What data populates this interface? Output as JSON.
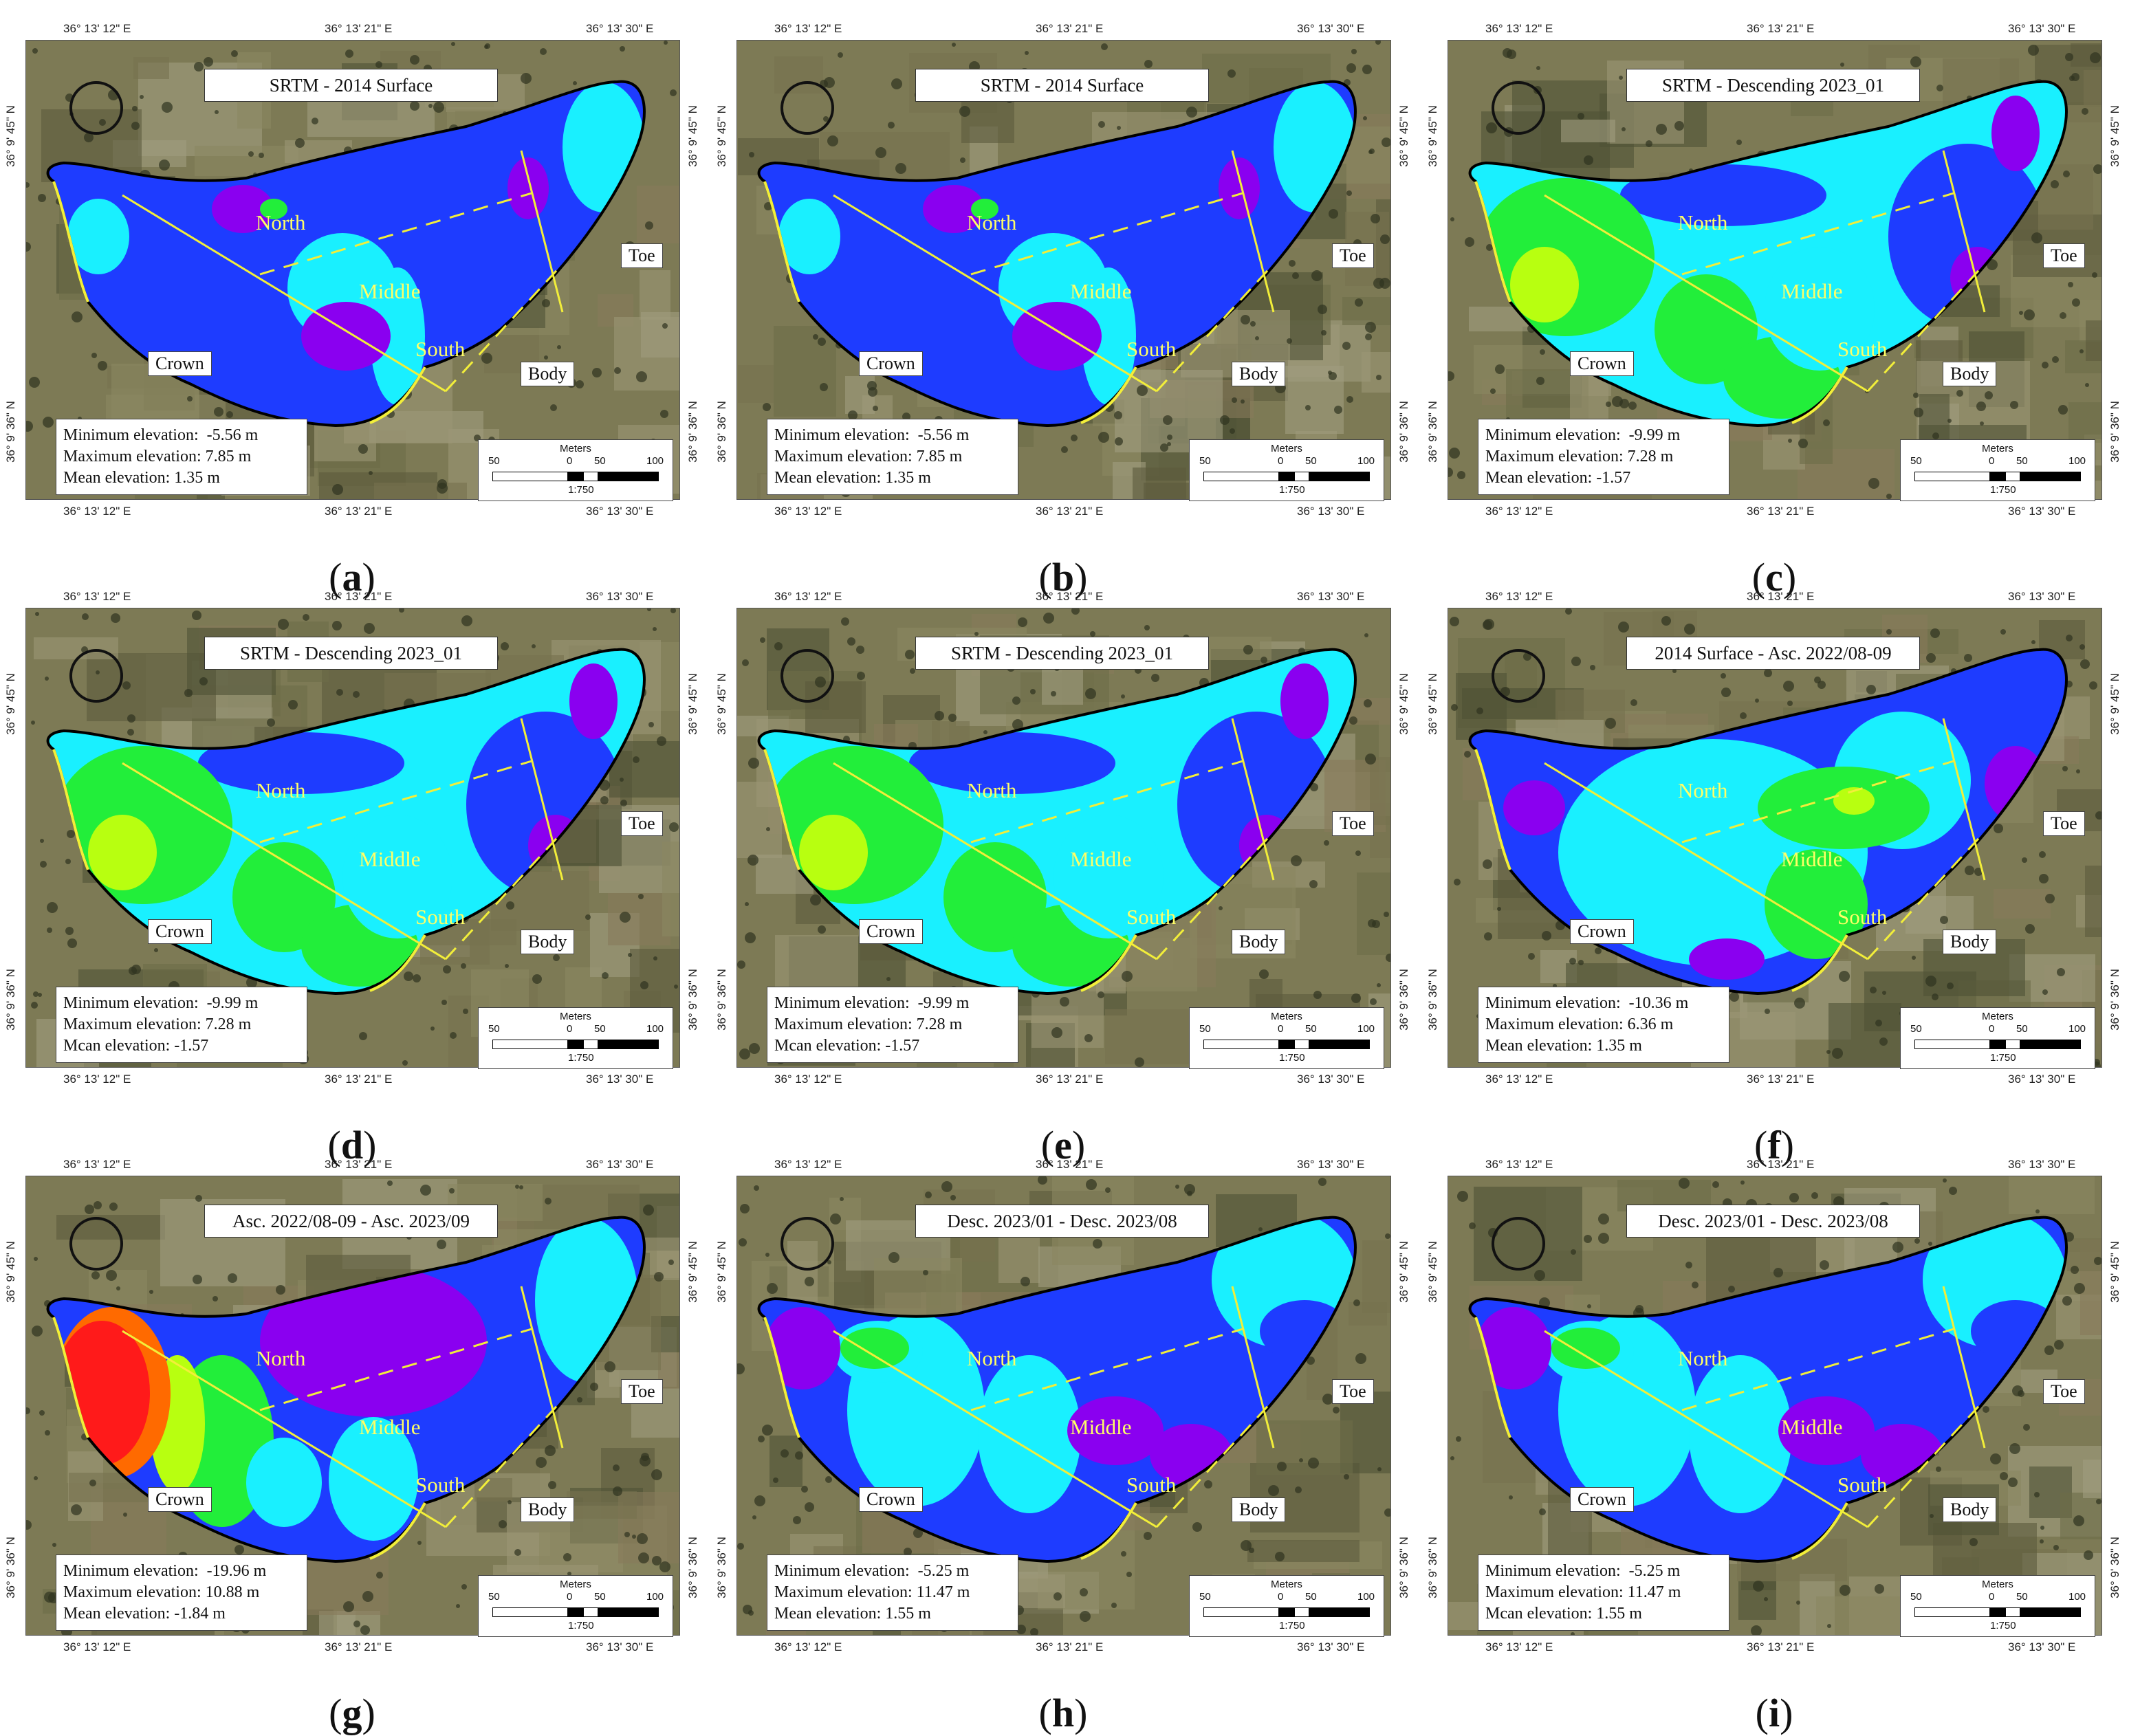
{
  "coords": {
    "top_left": "36° 13' 12\" E",
    "top_mid": "36° 13' 21\" E",
    "top_right": "36° 13' 30\" E",
    "left_upper": "36° 9' 45\" N",
    "left_lower": "36° 9' 36\" N"
  },
  "labels": {
    "toe": "Toe",
    "body": "Body",
    "crown": "Crown",
    "north": "North",
    "middle": "Middle",
    "south": "South"
  },
  "scale": {
    "meters": "Meters",
    "t50a": "50",
    "t0": "0",
    "t50b": "50",
    "t100": "100",
    "ratio": "1:750"
  },
  "stat_labels": {
    "min": "Minimum elevation:",
    "max": "Maximum elevation:",
    "mean": "Mean elevation:"
  },
  "colors": {
    "purple": "#8a00f0",
    "blue": "#1e3cff",
    "cyan": "#19f0ff",
    "green": "#22ee3a",
    "yellowgreen": "#b8ff10",
    "orange": "#ff6a00",
    "red": "#ff1a1a",
    "guide": "#f2ee3a"
  },
  "panels": [
    {
      "caption": "a",
      "title": "SRTM - 2014 Surface",
      "min": "-5.56 m",
      "max": "7.85 m",
      "mean": "1.35 m",
      "mean_label": "Mean elevation:",
      "scheme": "blue"
    },
    {
      "caption": "b",
      "title": "SRTM - 2014 Surface",
      "min": "-5.56 m",
      "max": "7.85 m",
      "mean": "1.35 m",
      "mean_label": "Mean elevation:",
      "scheme": "blue"
    },
    {
      "caption": "c",
      "title": "SRTM - Descending 2023_01",
      "min": "-9.99 m",
      "max": "7.28 m",
      "mean": "-1.57",
      "mean_label": "Mean elevation:",
      "scheme": "desc"
    },
    {
      "caption": "d",
      "title": "SRTM - Descending 2023_01",
      "min": "-9.99 m",
      "max": "7.28 m",
      "mean": "-1.57",
      "mean_label": "Mcan elevation:",
      "scheme": "desc"
    },
    {
      "caption": "e",
      "title": "SRTM - Descending 2023_01",
      "min": "-9.99 m",
      "max": "7.28 m",
      "mean": "-1.57",
      "mean_label": "Mcan elevation:",
      "scheme": "desc"
    },
    {
      "caption": "f",
      "title": "2014 Surface - Asc. 2022/08-09",
      "min": "-10.36 m",
      "max": "6.36 m",
      "mean": "1.35 m",
      "mean_label": "Mean elevation:",
      "scheme": "asc"
    },
    {
      "caption": "g",
      "title": "Asc. 2022/08-09 - Asc. 2023/09",
      "min": "-19.96 m",
      "max": "10.88 m",
      "mean": "-1.84 m",
      "mean_label": "Mean elevation:",
      "scheme": "diff"
    },
    {
      "caption": "h",
      "title": "Desc. 2023/01 - Desc. 2023/08",
      "min": "-5.25 m",
      "max": "11.47 m",
      "mean": "1.55 m",
      "mean_label": "Mean elevation:",
      "scheme": "desc2"
    },
    {
      "caption": "i",
      "title": "Desc. 2023/01 - Desc. 2023/08",
      "min": "-5.25 m",
      "max": "11.47 m",
      "mean": "1.55 m",
      "mean_label": "Mcan elevation:",
      "scheme": "desc2"
    }
  ]
}
